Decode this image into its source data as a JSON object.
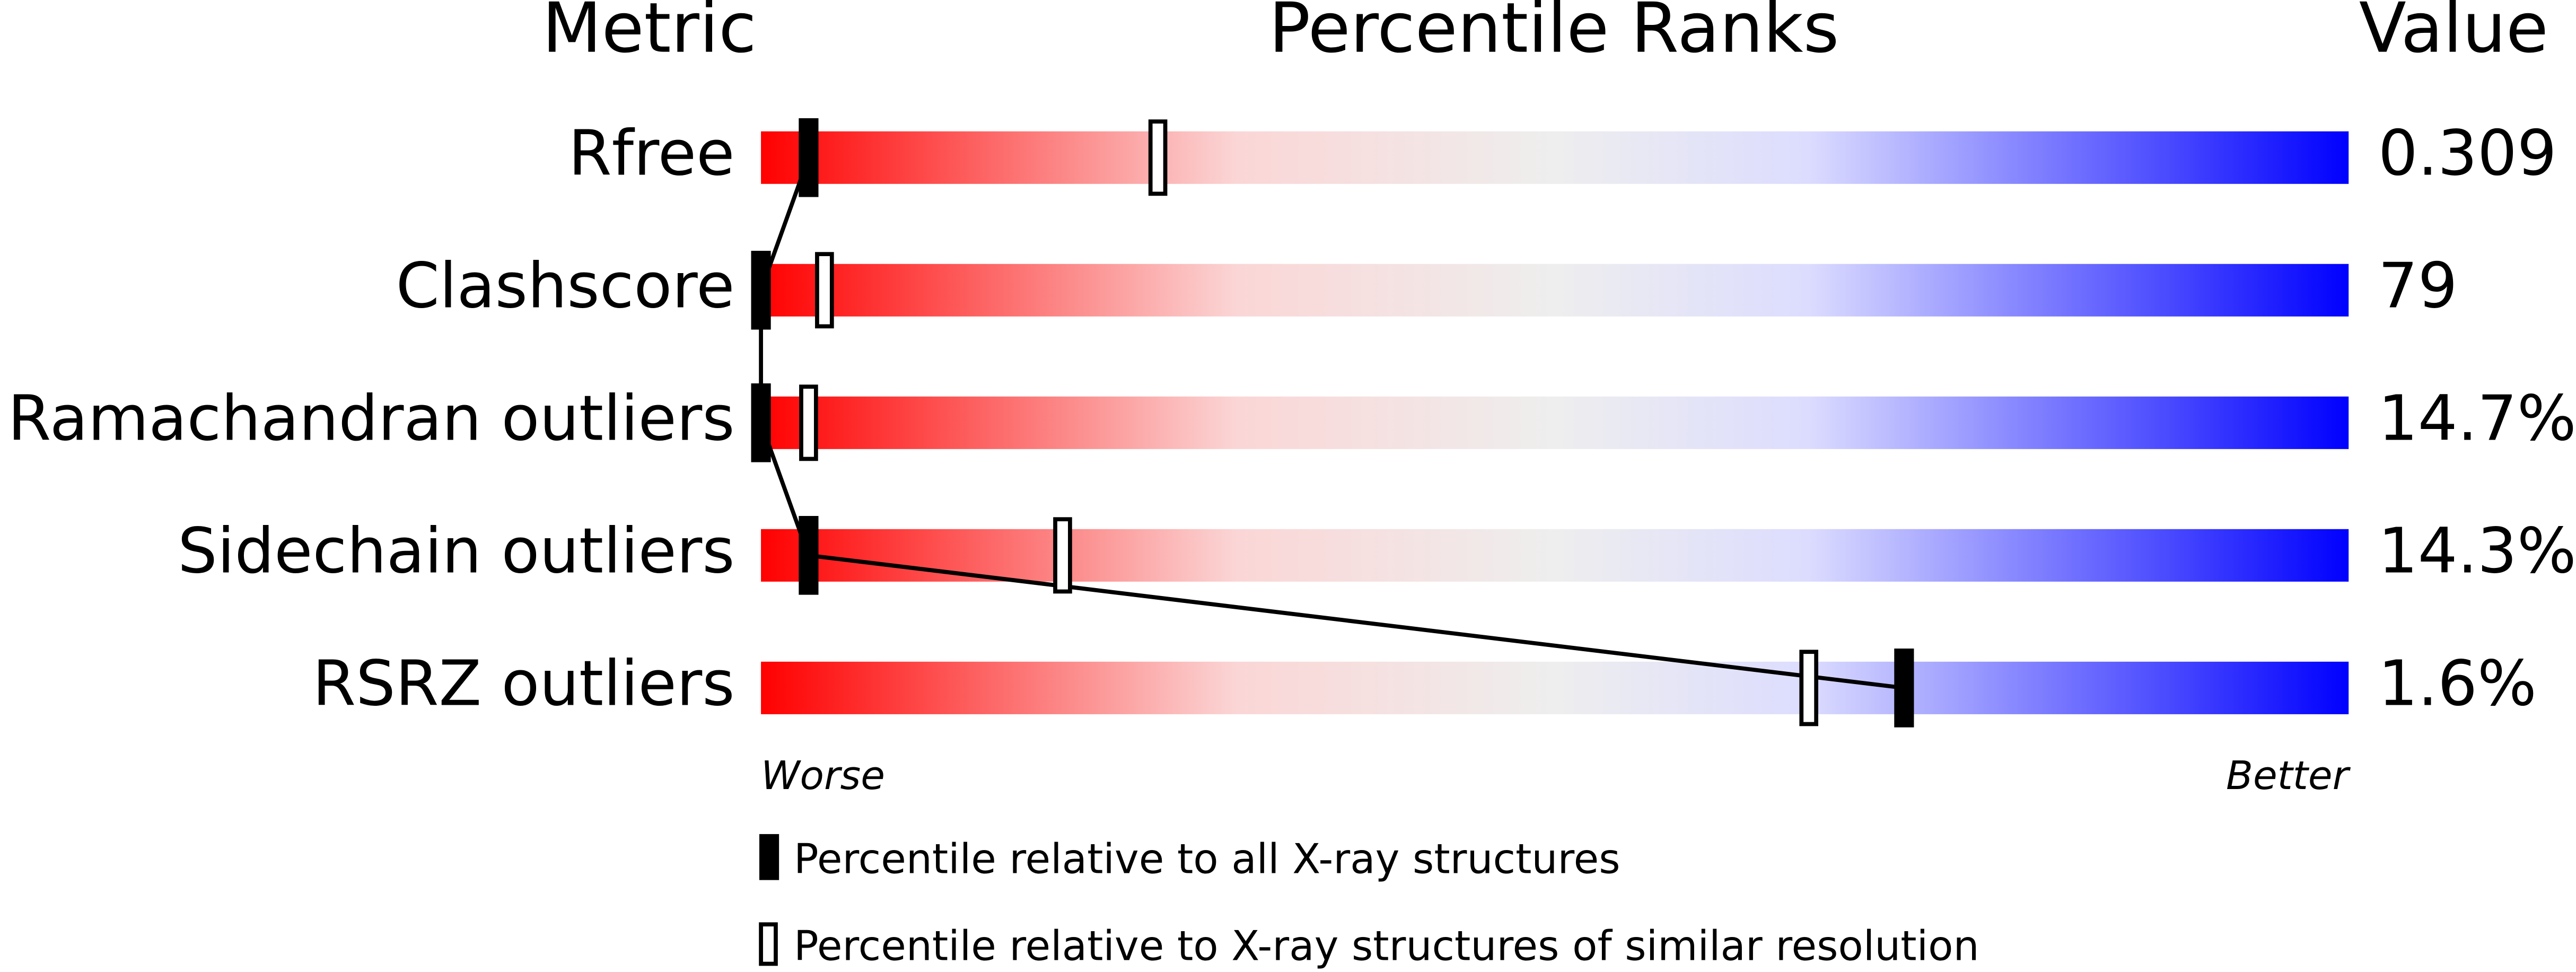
{
  "chart_data": {
    "type": "percentile",
    "title": "Percentile Ranks",
    "metric_header": "Metric",
    "value_header": "Value",
    "categories": [
      "Rfree",
      "Clashscore",
      "Ramachandran outliers",
      "Sidechain outliers",
      "RSRZ outliers"
    ],
    "metric_values": [
      "0.309",
      "79",
      "14.7%",
      "14.3%",
      "1.6%"
    ],
    "series": [
      {
        "name": "Percentile relative to all X-ray structures",
        "color": "#000000",
        "values": [
          3,
          0,
          0,
          3,
          72
        ]
      },
      {
        "name": "Percentile relative to X-ray structures of similar resolution",
        "color": "#000000",
        "values": [
          25,
          4,
          3,
          19,
          66
        ]
      }
    ],
    "xlim": [
      0,
      100
    ],
    "worse_label": "Worse",
    "better_label": "Better"
  }
}
